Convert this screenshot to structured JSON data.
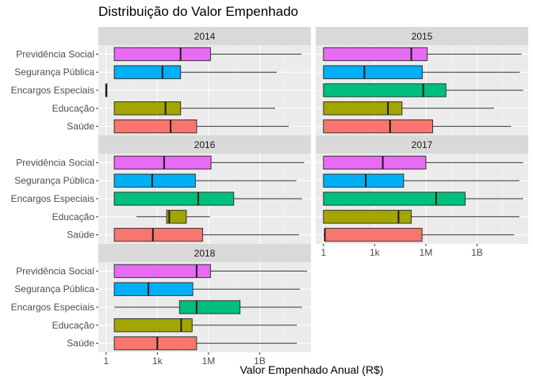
{
  "title": "Distribuição do Valor Empenhado",
  "chart_data": {
    "type": "boxplot",
    "orientation": "horizontal",
    "facets": [
      "2014",
      "2015",
      "2016",
      "2017",
      "2018"
    ],
    "categories": [
      "Previdência Social",
      "Segurança Pública",
      "Encargos Especiais",
      "Educação",
      "Saúde"
    ],
    "category_colors": {
      "Previdência Social": "#E76BF3",
      "Segurança Pública": "#00B0F6",
      "Encargos Especiais": "#00BF7D",
      "Educação": "#A3A500",
      "Saúde": "#F8766D"
    },
    "xlabel": "Valor Empenhado Anual (R$)",
    "x_scale": "log10",
    "xlim": [
      0.35,
      1000000000000.0
    ],
    "x_ticks": [
      {
        "value": 1,
        "label": "1"
      },
      {
        "value": 1000,
        "label": "1k"
      },
      {
        "value": 1000000,
        "label": "1M"
      },
      {
        "value": 1000000000,
        "label": "1B"
      }
    ],
    "panels": [
      {
        "facet": "2014",
        "boxes": [
          {
            "category": "Previdência Social",
            "whisker_low": 3.0,
            "q1": 3.0,
            "median": 23000,
            "q3": 1300000,
            "whisker_high": 280000000000
          },
          {
            "category": "Segurança Pública",
            "whisker_low": 3.0,
            "q1": 3.0,
            "median": 2000,
            "q3": 23000,
            "whisker_high": 10000000000
          },
          {
            "category": "Encargos Especiais",
            "whisker_low": 1.0,
            "q1": 1.0,
            "median": 1.0,
            "q3": 1.0,
            "whisker_high": 1.0
          },
          {
            "category": "Educação",
            "whisker_low": 3.0,
            "q1": 3.0,
            "median": 3000,
            "q3": 23000,
            "whisker_high": 8000000000
          },
          {
            "category": "Saúde",
            "whisker_low": 3.0,
            "q1": 3.0,
            "median": 6000,
            "q3": 200000,
            "whisker_high": 50000000000
          }
        ]
      },
      {
        "facet": "2015",
        "boxes": [
          {
            "category": "Previdência Social",
            "whisker_low": 1.0,
            "q1": 1.0,
            "median": 140000,
            "q3": 1200000,
            "whisker_high": 400000000000
          },
          {
            "category": "Segurança Pública",
            "whisker_low": 1.0,
            "q1": 1.0,
            "median": 250,
            "q3": 620000,
            "whisker_high": 320000000000
          },
          {
            "category": "Encargos Especiais",
            "whisker_low": 1.0,
            "q1": 1.0,
            "median": 700000,
            "q3": 15000000,
            "whisker_high": 500000000000
          },
          {
            "category": "Educação",
            "whisker_low": 1.0,
            "q1": 1.0,
            "median": 6000,
            "q3": 40000,
            "whisker_high": 10000000000
          },
          {
            "category": "Saúde",
            "whisker_low": 1.0,
            "q1": 1.0,
            "median": 8000,
            "q3": 2500000,
            "whisker_high": 100000000000
          }
        ]
      },
      {
        "facet": "2016",
        "boxes": [
          {
            "category": "Previdência Social",
            "whisker_low": 3.0,
            "q1": 3.0,
            "median": 2500,
            "q3": 1400000,
            "whisker_high": 400000000000
          },
          {
            "category": "Segurança Pública",
            "whisker_low": 3.0,
            "q1": 3.0,
            "median": 500,
            "q3": 170000,
            "whisker_high": 140000000000
          },
          {
            "category": "Encargos Especiais",
            "whisker_low": 3.0,
            "q1": 3.0,
            "median": 250000,
            "q3": 30000000,
            "whisker_high": 300000000000
          },
          {
            "category": "Educação",
            "whisker_low": 60,
            "q1": 3500,
            "median": 5000,
            "q3": 50000,
            "whisker_high": 1200000
          },
          {
            "category": "Saúde",
            "whisker_low": 3.0,
            "q1": 3.0,
            "median": 550,
            "q3": 450000,
            "whisker_high": 200000000000
          }
        ]
      },
      {
        "facet": "2017",
        "boxes": [
          {
            "category": "Previdência Social",
            "whisker_low": 1.0,
            "q1": 1.0,
            "median": 3000,
            "q3": 1000000,
            "whisker_high": 500000000000
          },
          {
            "category": "Segurança Pública",
            "whisker_low": 1.0,
            "q1": 1.0,
            "median": 300,
            "q3": 50000,
            "whisker_high": 300000000000
          },
          {
            "category": "Encargos Especiais",
            "whisker_low": 1.0,
            "q1": 1.0,
            "median": 4000000,
            "q3": 200000000,
            "whisker_high": 500000000000
          },
          {
            "category": "Educação",
            "whisker_low": 1.0,
            "q1": 1.0,
            "median": 25000,
            "q3": 140000,
            "whisker_high": 300000000000
          },
          {
            "category": "Saúde",
            "whisker_low": 1.0,
            "q1": 1.2,
            "median": 1.2,
            "q3": 600000,
            "whisker_high": 150000000000
          }
        ]
      },
      {
        "facet": "2018",
        "boxes": [
          {
            "category": "Previdência Social",
            "whisker_low": 3.0,
            "q1": 3.0,
            "median": 200000,
            "q3": 1300000,
            "whisker_high": 600000000000
          },
          {
            "category": "Segurança Pública",
            "whisker_low": 3.0,
            "q1": 3.0,
            "median": 300,
            "q3": 120000,
            "whisker_high": 230000000000
          },
          {
            "category": "Encargos Especiais",
            "whisker_low": 3.0,
            "q1": 20000,
            "median": 200000,
            "q3": 70000000,
            "whisker_high": 300000000000
          },
          {
            "category": "Educação",
            "whisker_low": 3.0,
            "q1": 3.0,
            "median": 25000,
            "q3": 110000,
            "whisker_high": 150000000000
          },
          {
            "category": "Saúde",
            "whisker_low": 3.0,
            "q1": 3.0,
            "median": 1000,
            "q3": 200000,
            "whisker_high": 150000000000
          }
        ]
      }
    ]
  }
}
